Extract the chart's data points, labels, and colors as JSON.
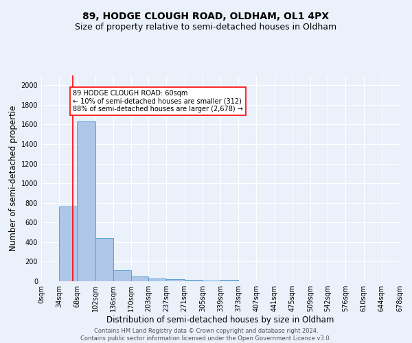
{
  "title": "89, HODGE CLOUGH ROAD, OLDHAM, OL1 4PX",
  "subtitle": "Size of property relative to semi-detached houses in Oldham",
  "xlabel": "Distribution of semi-detached houses by size in Oldham",
  "ylabel": "Number of semi-detached propertie",
  "footer_line1": "Contains HM Land Registry data © Crown copyright and database right 2024.",
  "footer_line2": "Contains public sector information licensed under the Open Government Licence v3.0.",
  "bar_edges": [
    0,
    34,
    68,
    102,
    136,
    170,
    203,
    237,
    271,
    305,
    339,
    373,
    407,
    441,
    475,
    509,
    542,
    576,
    610,
    644,
    678
  ],
  "bar_heights": [
    0,
    760,
    1630,
    440,
    110,
    50,
    30,
    20,
    15,
    10,
    15,
    0,
    0,
    0,
    0,
    0,
    0,
    0,
    0,
    0
  ],
  "bar_color": "#aec6e8",
  "bar_edge_color": "#5a9fd4",
  "red_line_x": 60,
  "annotation_box_text": "89 HODGE CLOUGH ROAD: 60sqm\n← 10% of semi-detached houses are smaller (312)\n88% of semi-detached houses are larger (2,678) →",
  "ylim": [
    0,
    2100
  ],
  "yticks": [
    0,
    200,
    400,
    600,
    800,
    1000,
    1200,
    1400,
    1600,
    1800,
    2000
  ],
  "x_labels": [
    "0sqm",
    "34sqm",
    "68sqm",
    "102sqm",
    "136sqm",
    "170sqm",
    "203sqm",
    "237sqm",
    "271sqm",
    "305sqm",
    "339sqm",
    "373sqm",
    "407sqm",
    "441sqm",
    "475sqm",
    "509sqm",
    "542sqm",
    "576sqm",
    "610sqm",
    "644sqm",
    "678sqm"
  ],
  "background_color": "#eaf1fb",
  "grid_color": "#ffffff",
  "title_fontsize": 10,
  "subtitle_fontsize": 9,
  "axis_label_fontsize": 8.5,
  "tick_fontsize": 7,
  "annotation_fontsize": 7,
  "footer_fontsize": 6
}
